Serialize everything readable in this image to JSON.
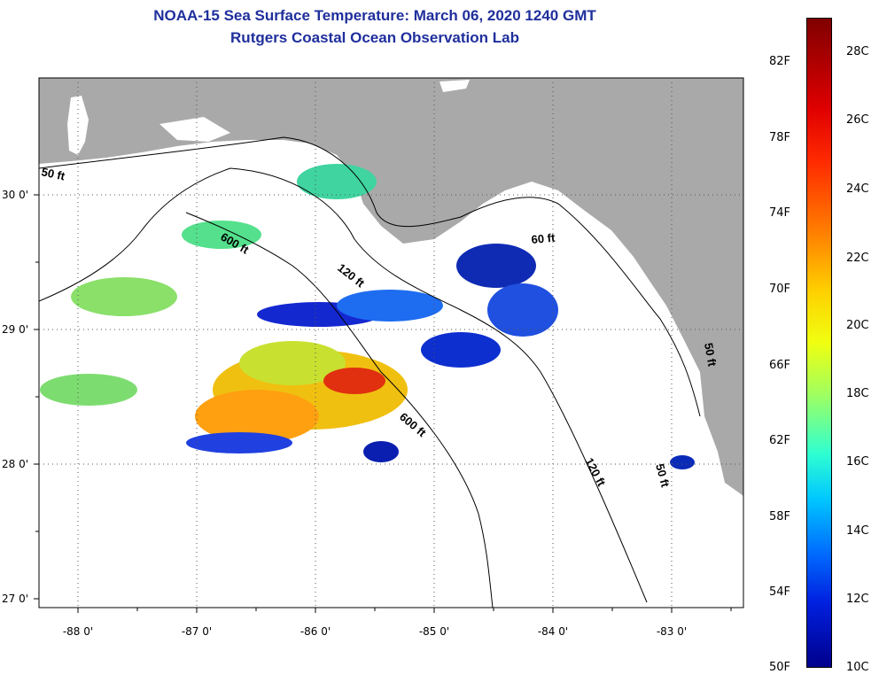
{
  "title_line1": "NOAA-15 Sea Surface Temperature:  March 06, 2020 1240 GMT",
  "title_line2": "Rutgers Coastal Ocean Observation Lab",
  "lat_labels": [
    "30 0'",
    "29 0'",
    "28 0'",
    "27 0'"
  ],
  "lon_labels": [
    "-88 0'",
    "-87 0'",
    "-86 0'",
    "-85 0'",
    "-84 0'",
    "-83 0'"
  ],
  "contour_labels": {
    "nw_50": "50 ft",
    "west_600": "600 ft",
    "mid_120": "120 ft",
    "east_60": "60 ft",
    "south_600": "600 ft",
    "south_120": "120 ft",
    "south_50": "50 ft",
    "far_east_50": "50 ft"
  },
  "colorbar": {
    "fahrenheit": [
      "82F",
      "78F",
      "74F",
      "70F",
      "66F",
      "62F",
      "58F",
      "54F",
      "50F"
    ],
    "celsius": [
      "28C",
      "26C",
      "24C",
      "22C",
      "20C",
      "18C",
      "16C",
      "14C",
      "12C",
      "10C"
    ],
    "min_c": 10,
    "max_c": 29
  },
  "colors": {
    "land": "#a9a9a9",
    "title": "#1f2f9c",
    "water": "#ffffff"
  }
}
